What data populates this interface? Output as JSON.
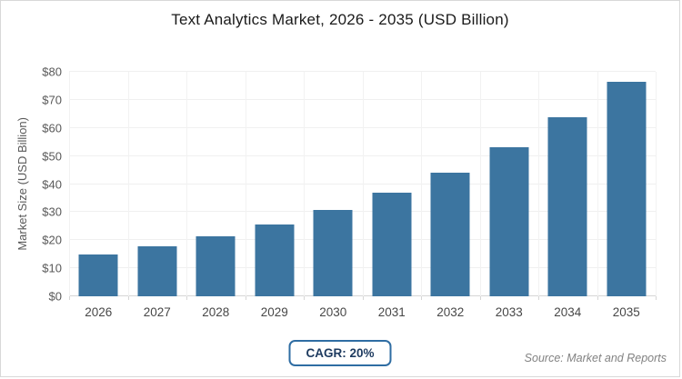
{
  "chart_data": {
    "type": "bar",
    "title": "Text Analytics Market, 2026 - 2035 (USD Billion)",
    "categories": [
      "2026",
      "2027",
      "2028",
      "2029",
      "2030",
      "2031",
      "2032",
      "2033",
      "2034",
      "2035"
    ],
    "values": [
      14.8,
      17.8,
      21.3,
      25.6,
      30.7,
      36.9,
      44.2,
      53.1,
      63.7,
      76.5
    ],
    "xlabel": "",
    "ylabel": "Market Size (USD Billion)",
    "ylim": [
      0,
      80
    ],
    "ytick_step": 10,
    "ytick_prefix": "$",
    "grid": true,
    "legend": "none",
    "bar_color": "#3c75a0"
  },
  "footer": {
    "cagr_label": "CAGR: 20%",
    "source": "Source: Market and Reports"
  },
  "colors": {
    "bar": "#3c75a0",
    "gridline": "#f0f0f0",
    "axis_line": "#d6d6d6",
    "badge_border": "#2f6da3",
    "badge_text": "#1d3a5f",
    "tick_label": "#595959",
    "title_text": "#1a1a1a",
    "source_text": "#828282",
    "frame_border": "#d8d8d8",
    "background": "#ffffff"
  }
}
